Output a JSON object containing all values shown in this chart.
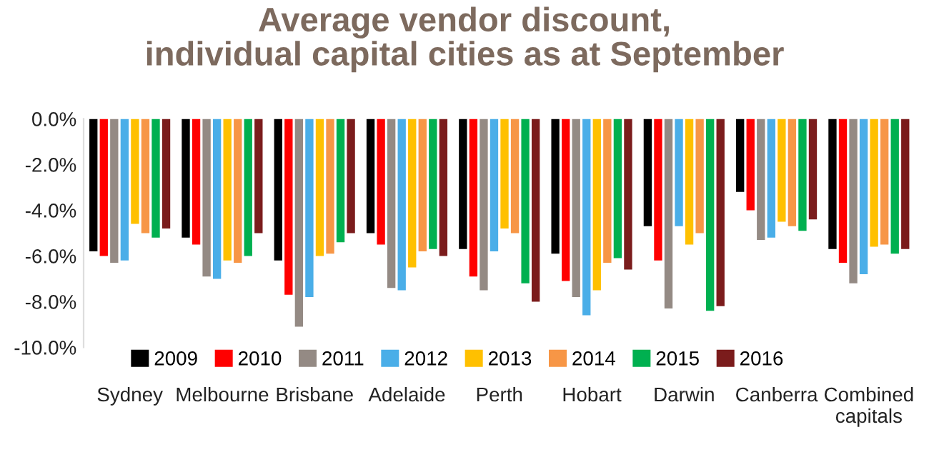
{
  "chart_data": {
    "type": "bar",
    "title": "Average vendor discount,\nindividual capital cities as at September",
    "categories": [
      "Sydney",
      "Melbourne",
      "Brisbane",
      "Adelaide",
      "Perth",
      "Hobart",
      "Darwin",
      "Canberra",
      "Combined\ncapitals"
    ],
    "series": [
      {
        "name": "2009",
        "color": "#000000",
        "values": [
          -5.8,
          -5.2,
          -6.2,
          -5.0,
          -5.7,
          -5.9,
          -4.7,
          -3.2,
          -5.7
        ]
      },
      {
        "name": "2010",
        "color": "#ff0000",
        "values": [
          -6.0,
          -5.5,
          -7.7,
          -5.5,
          -6.9,
          -7.1,
          -6.2,
          -4.0,
          -6.3
        ]
      },
      {
        "name": "2011",
        "color": "#948a84",
        "values": [
          -6.3,
          -6.9,
          -9.1,
          -7.4,
          -7.5,
          -7.8,
          -8.3,
          -5.3,
          -7.2
        ]
      },
      {
        "name": "2012",
        "color": "#4aaee8",
        "values": [
          -6.2,
          -7.0,
          -7.8,
          -7.5,
          -5.8,
          -8.6,
          -4.7,
          -5.2,
          -6.8
        ]
      },
      {
        "name": "2013",
        "color": "#ffc000",
        "values": [
          -4.6,
          -6.2,
          -6.0,
          -6.5,
          -4.8,
          -7.5,
          -5.5,
          -4.5,
          -5.6
        ]
      },
      {
        "name": "2014",
        "color": "#f79646",
        "values": [
          -5.0,
          -6.3,
          -5.9,
          -5.8,
          -5.0,
          -6.3,
          -5.0,
          -4.7,
          -5.5
        ]
      },
      {
        "name": "2015",
        "color": "#00b050",
        "values": [
          -5.2,
          -6.0,
          -5.4,
          -5.7,
          -7.2,
          -6.1,
          -8.4,
          -4.9,
          -5.9
        ]
      },
      {
        "name": "2016",
        "color": "#7b1c1c",
        "values": [
          -4.8,
          -5.0,
          -5.0,
          -6.0,
          -8.0,
          -6.6,
          -8.2,
          -4.4,
          -5.7
        ]
      }
    ],
    "ylim": [
      -10,
      0
    ],
    "yticks": [
      {
        "value": 0,
        "label": "0.0%"
      },
      {
        "value": -2,
        "label": "-2.0%"
      },
      {
        "value": -4,
        "label": "-4.0%"
      },
      {
        "value": -6,
        "label": "-6.0%"
      },
      {
        "value": -8,
        "label": "-8.0%"
      },
      {
        "value": -10,
        "label": "-10.0%"
      }
    ],
    "grid": false,
    "legend": "bottom"
  }
}
